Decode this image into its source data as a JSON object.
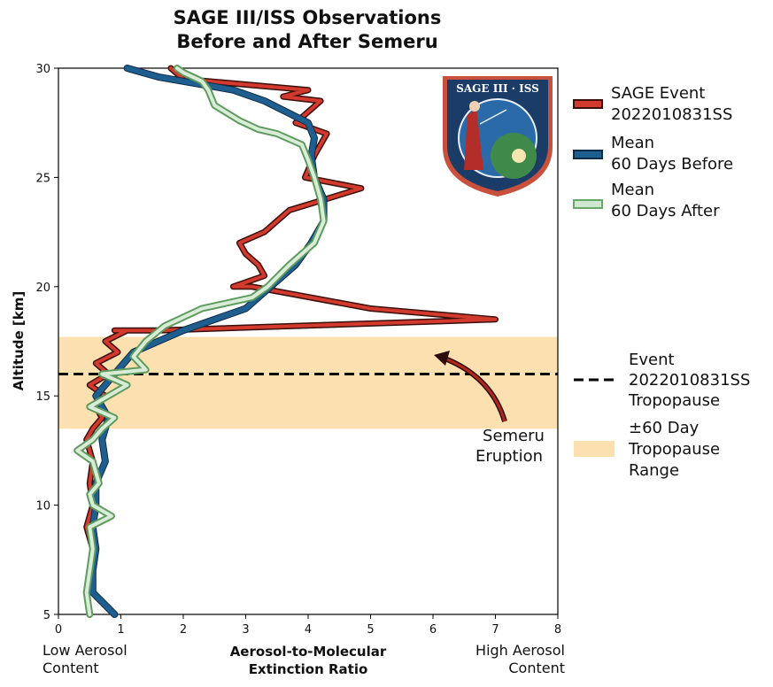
{
  "chart_data": {
    "type": "line",
    "title": [
      "SAGE III/ISS Observations",
      "Before and After Semeru"
    ],
    "xlabel": [
      "Aerosol-to-Molecular",
      "Extinction Ratio"
    ],
    "xlabel_left": [
      "Low Aerosol",
      "Content"
    ],
    "xlabel_right": [
      "High Aerosol",
      "Content"
    ],
    "ylabel": "Altitude [km]",
    "xlim": [
      0,
      8
    ],
    "ylim": [
      5,
      30
    ],
    "xticks": [
      0,
      1,
      2,
      3,
      4,
      5,
      6,
      7,
      8
    ],
    "yticks": [
      5,
      10,
      15,
      20,
      25,
      30
    ],
    "grid": false,
    "legend_position": "right",
    "series": [
      {
        "name": "SAGE Event 2022010831SS",
        "legend_lines": [
          "SAGE Event",
          "2022010831SS"
        ],
        "color": "#d23a2e",
        "x": [
          0.9,
          0.55,
          0.5,
          0.55,
          0.45,
          0.55,
          0.5,
          0.55,
          0.45,
          0.55,
          0.7,
          0.6,
          0.75,
          0.5,
          0.8,
          0.6,
          0.95,
          0.75,
          1.1,
          0.9,
          1.25,
          1.5,
          1.6,
          7.0,
          5.0,
          3.1,
          2.8,
          3.3,
          3.2,
          3.0,
          2.9,
          3.3,
          3.7,
          4.85,
          3.95,
          4.1,
          4.3,
          3.8,
          4.2,
          3.6,
          4.0,
          2.0,
          1.8
        ],
        "y": [
          5,
          6,
          7,
          8,
          9,
          10,
          11,
          12,
          13,
          13.5,
          14,
          14.5,
          15,
          15.5,
          16,
          16.5,
          17,
          17.5,
          18,
          18,
          18,
          18,
          18,
          18.5,
          19,
          20,
          20,
          20.5,
          21,
          21.5,
          22,
          22.5,
          23.5,
          24.5,
          25,
          26,
          27,
          27.5,
          28.5,
          28.7,
          29,
          29.5,
          30
        ]
      },
      {
        "name": "Mean 60 Days Before",
        "legend_lines": [
          "Mean",
          "60 Days Before"
        ],
        "color": "#1f5f8f",
        "x": [
          0.9,
          0.55,
          0.55,
          0.6,
          0.55,
          0.6,
          0.6,
          0.75,
          0.7,
          0.8,
          0.6,
          0.9,
          1.2,
          1.6,
          2.0,
          2.5,
          3.0,
          3.4,
          3.8,
          4.05,
          4.25,
          4.25,
          4.1,
          4.05,
          4.1,
          4.0,
          3.3,
          2.8,
          1.6,
          1.1
        ],
        "y": [
          5,
          6,
          7,
          8,
          9,
          10,
          11,
          12,
          13,
          14,
          15,
          16,
          17,
          17.5,
          18,
          18.5,
          19,
          20,
          21,
          22,
          23,
          24,
          25,
          26,
          26.8,
          27.5,
          28.5,
          29,
          29.6,
          30
        ]
      },
      {
        "name": "Mean 60 Days After",
        "legend_lines": [
          "Mean",
          "60 Days After"
        ],
        "color": "#8fbf8f",
        "x": [
          0.5,
          0.45,
          0.5,
          0.55,
          0.5,
          0.85,
          0.55,
          0.5,
          0.65,
          0.55,
          0.3,
          0.55,
          0.7,
          0.9,
          0.5,
          0.8,
          1.1,
          0.7,
          1.4,
          1.2,
          1.4,
          1.7,
          2.3,
          3.1,
          3.35,
          3.7,
          4.1,
          4.25,
          4.2,
          4.1,
          4.0,
          3.9,
          3.5,
          3.2,
          2.9,
          2.5,
          2.4,
          2.3,
          2.0,
          1.9
        ],
        "y": [
          5,
          6,
          7,
          8,
          9,
          9.5,
          10,
          10.5,
          11,
          12,
          12.5,
          13,
          13.5,
          14,
          14.5,
          15,
          15.5,
          16,
          16.2,
          16.8,
          17.5,
          18.2,
          19,
          19.5,
          20,
          21,
          22,
          23,
          24,
          25,
          25.8,
          26.5,
          27,
          27.2,
          27.6,
          28.3,
          29,
          29.4,
          29.8,
          30
        ]
      }
    ],
    "reference": {
      "tropopause_km": 16.0,
      "tropopause_color": "#000000",
      "tropopause_legend": [
        "Event",
        "2022010831SS",
        "Tropopause"
      ],
      "range_km": [
        13.5,
        17.7
      ],
      "range_color": "#fde0b0",
      "range_legend": [
        "±60 Day",
        "Tropopause",
        "Range"
      ]
    },
    "annotation": {
      "lines": [
        "Semeru",
        "Eruption"
      ],
      "arrow_color": "#8b1a1a"
    },
    "logo": {
      "text": "SAGE III · ISS"
    }
  }
}
